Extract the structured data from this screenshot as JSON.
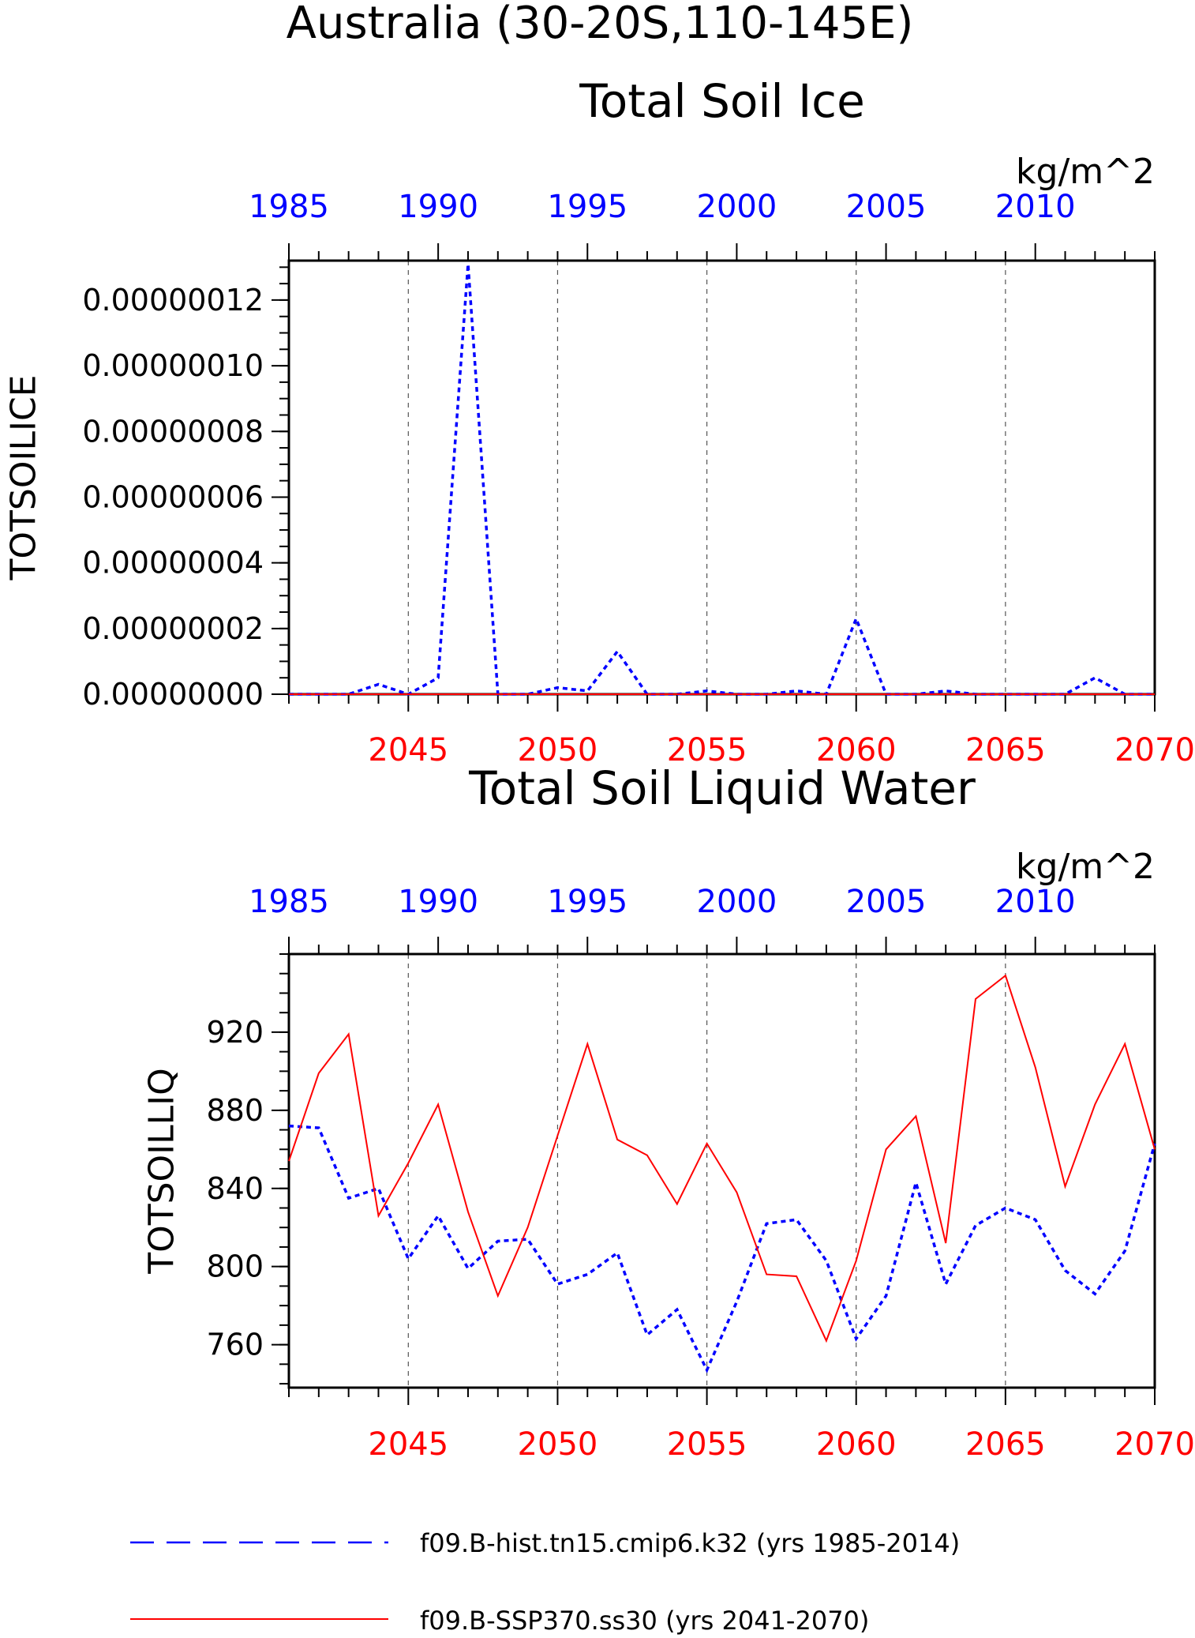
{
  "page_title": "Australia (30-20S,110-145E)",
  "colors": {
    "hist": "#0000ff",
    "ssp": "#ff0000",
    "axis": "#000000",
    "grid": "#555555"
  },
  "chart_data": [
    {
      "type": "line",
      "title": "Total Soil Ice",
      "units": "kg/m^2",
      "ylabel": "TOTSOILICE",
      "xlabel": "",
      "ylim": [
        0,
        1.32e-07
      ],
      "yticks": [
        0.0,
        2e-08,
        4e-08,
        6e-08,
        8e-08,
        1e-07,
        1.2e-07
      ],
      "ytick_labels": [
        "0.00000000",
        "0.00000002",
        "0.00000004",
        "0.00000006",
        "0.00000008",
        "0.00000010",
        "0.00000012"
      ],
      "grid": "vertical dashed at bottom-axis major ticks",
      "bottom_axis": {
        "range": [
          2041,
          2070
        ],
        "ticks": [
          2045,
          2050,
          2055,
          2060,
          2065,
          2070
        ],
        "color": "#ff0000"
      },
      "top_axis": {
        "range": [
          1985,
          2014
        ],
        "ticks": [
          1985,
          1990,
          1995,
          2000,
          2005,
          2010
        ],
        "color": "#0000ff"
      },
      "series": [
        {
          "name": "f09.B-hist.tn15.cmip6.k32 (yrs 1985-2014)",
          "axis": "top",
          "color": "#0000ff",
          "style": "dashed",
          "x": [
            1985,
            1986,
            1987,
            1988,
            1989,
            1990,
            1991,
            1992,
            1993,
            1994,
            1995,
            1996,
            1997,
            1998,
            1999,
            2000,
            2001,
            2002,
            2003,
            2004,
            2005,
            2006,
            2007,
            2008,
            2009,
            2010,
            2011,
            2012,
            2013,
            2014
          ],
          "values": [
            0,
            0,
            0,
            3e-09,
            0,
            5e-09,
            1.31e-07,
            0,
            0,
            2e-09,
            1e-09,
            1.3e-08,
            0,
            0,
            1e-09,
            0,
            0,
            1e-09,
            0,
            2.3e-08,
            0,
            0,
            1e-09,
            0,
            0,
            0,
            0,
            5e-09,
            0,
            0
          ]
        },
        {
          "name": "f09.B-SSP370.ss30 (yrs 2041-2070)",
          "axis": "bottom",
          "color": "#ff0000",
          "style": "solid",
          "x": [
            2041,
            2042,
            2043,
            2044,
            2045,
            2046,
            2047,
            2048,
            2049,
            2050,
            2051,
            2052,
            2053,
            2054,
            2055,
            2056,
            2057,
            2058,
            2059,
            2060,
            2061,
            2062,
            2063,
            2064,
            2065,
            2066,
            2067,
            2068,
            2069,
            2070
          ],
          "values": [
            0,
            0,
            0,
            0,
            0,
            0,
            0,
            0,
            0,
            0,
            0,
            0,
            0,
            0,
            0,
            0,
            0,
            0,
            0,
            0,
            0,
            0,
            0,
            0,
            0,
            0,
            0,
            0,
            0,
            0
          ]
        }
      ]
    },
    {
      "type": "line",
      "title": "Total Soil Liquid Water",
      "units": "kg/m^2",
      "ylabel": "TOTSOILLIQ",
      "xlabel": "",
      "ylim": [
        738,
        960
      ],
      "yticks": [
        760,
        800,
        840,
        880,
        920
      ],
      "ytick_labels": [
        "760",
        "800",
        "840",
        "880",
        "920"
      ],
      "grid": "vertical dashed at bottom-axis major ticks",
      "bottom_axis": {
        "range": [
          2041,
          2070
        ],
        "ticks": [
          2045,
          2050,
          2055,
          2060,
          2065,
          2070
        ],
        "color": "#ff0000"
      },
      "top_axis": {
        "range": [
          1985,
          2014
        ],
        "ticks": [
          1985,
          1990,
          1995,
          2000,
          2005,
          2010
        ],
        "color": "#0000ff"
      },
      "series": [
        {
          "name": "f09.B-hist.tn15.cmip6.k32 (yrs 1985-2014)",
          "axis": "top",
          "color": "#0000ff",
          "style": "dashed",
          "x": [
            1985,
            1986,
            1987,
            1988,
            1989,
            1990,
            1991,
            1992,
            1993,
            1994,
            1995,
            1996,
            1997,
            1998,
            1999,
            2000,
            2001,
            2002,
            2003,
            2004,
            2005,
            2006,
            2007,
            2008,
            2009,
            2010,
            2011,
            2012,
            2013,
            2014
          ],
          "values": [
            872,
            871,
            835,
            840,
            804,
            826,
            799,
            813,
            814,
            791,
            796,
            807,
            765,
            778,
            747,
            782,
            822,
            824,
            803,
            763,
            785,
            843,
            791,
            821,
            830,
            824,
            798,
            786,
            808,
            863
          ]
        },
        {
          "name": "f09.B-SSP370.ss30 (yrs 2041-2070)",
          "axis": "bottom",
          "color": "#ff0000",
          "style": "solid",
          "x": [
            2041,
            2042,
            2043,
            2044,
            2045,
            2046,
            2047,
            2048,
            2049,
            2050,
            2051,
            2052,
            2053,
            2054,
            2055,
            2056,
            2057,
            2058,
            2059,
            2060,
            2061,
            2062,
            2063,
            2064,
            2065,
            2066,
            2067,
            2068,
            2069,
            2070
          ],
          "values": [
            854,
            899,
            919,
            826,
            853,
            883,
            828,
            785,
            820,
            867,
            914,
            865,
            857,
            832,
            863,
            838,
            796,
            795,
            762,
            803,
            860,
            877,
            812,
            937,
            949,
            902,
            841,
            883,
            914,
            860
          ]
        }
      ]
    }
  ],
  "legend": [
    {
      "label": "f09.B-hist.tn15.cmip6.k32 (yrs 1985-2014)",
      "color": "#0000ff",
      "style": "dashed"
    },
    {
      "label": "f09.B-SSP370.ss30 (yrs 2041-2070)",
      "color": "#ff0000",
      "style": "solid"
    }
  ]
}
